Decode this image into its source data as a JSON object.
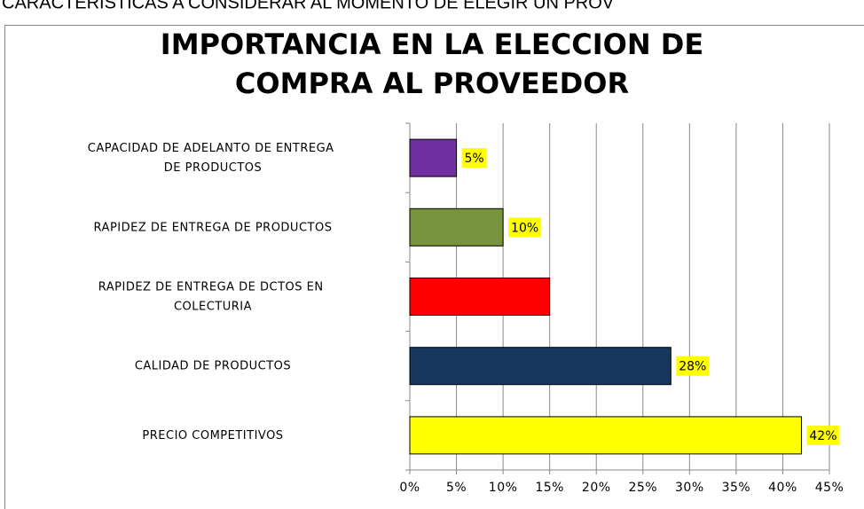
{
  "header": "CARACTERISTICAS A CONSIDERAR AL MOMENTO DE ELEGIR UN PROV",
  "chart_data": {
    "type": "hbar",
    "title": [
      "IMPORTANCIA EN LA ELECCION DE",
      "COMPRA AL PROVEEDOR"
    ],
    "categories": [
      "CAPACIDAD DE ADELANTO DE ENTREGA DE PRODUCTOS",
      "RAPIDEZ DE ENTREGA  DE PRODUCTOS",
      "RAPIDEZ DE ENTREGA  DE DCTOS EN COLECTURIA",
      "CALIDAD DE PRODUCTOS",
      "PRECIO COMPETITIVOS"
    ],
    "values": [
      5,
      10,
      15,
      28,
      42
    ],
    "value_labels": [
      "5%",
      "10%",
      null,
      "28%",
      "42%"
    ],
    "colors": [
      "#7030a0",
      "#77933c",
      "#ff0000",
      "#17375e",
      "#ffff00"
    ],
    "xlim": [
      0,
      45
    ],
    "xticks": [
      {
        "value": 0,
        "label": "0%"
      },
      {
        "value": 5,
        "label": "5%"
      },
      {
        "value": 10,
        "label": "10%"
      },
      {
        "value": 15,
        "label": "15%"
      },
      {
        "value": 20,
        "label": "20%"
      },
      {
        "value": 25,
        "label": "25%"
      },
      {
        "value": 30,
        "label": "30%"
      },
      {
        "value": 35,
        "label": "35%"
      },
      {
        "value": 40,
        "label": "40%"
      },
      {
        "value": 45,
        "label": "45%"
      }
    ],
    "grid": true
  }
}
